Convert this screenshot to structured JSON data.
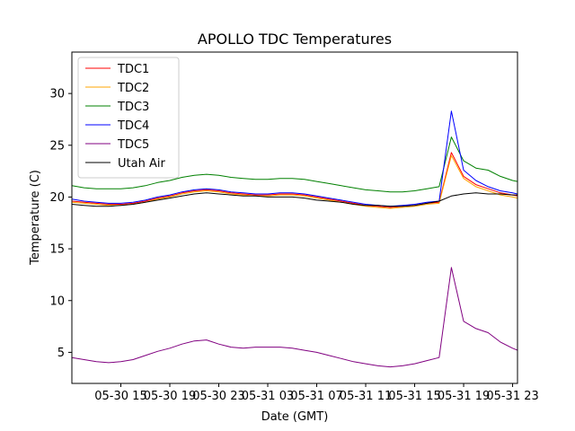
{
  "chart_data": {
    "type": "line",
    "title": "APOLLO TDC Temperatures",
    "xlabel": "Date (GMT)",
    "ylabel": "Temperature (C)",
    "xlim": [
      11.0,
      47.4
    ],
    "ylim": [
      2.0,
      34.0
    ],
    "x_tick_values": [
      15,
      19,
      23,
      27,
      31,
      35,
      39,
      43,
      47
    ],
    "x_tick_labels": [
      "05-30 15",
      "05-30 19",
      "05-30 23",
      "05-31 03",
      "05-31 07",
      "05-31 11",
      "05-31 15",
      "05-31 19",
      "05-31 23"
    ],
    "y_tick_values": [
      5,
      10,
      15,
      20,
      25,
      30
    ],
    "y_tick_labels": [
      "5",
      "10",
      "15",
      "20",
      "25",
      "30"
    ],
    "x_units": "hours since 05-30 00:00 GMT",
    "legend_position": "upper-left",
    "series": [
      {
        "name": "TDC1",
        "color": "#ff0000",
        "x": [
          11,
          12,
          13,
          14,
          15,
          16,
          17,
          18,
          19,
          20,
          21,
          22,
          23,
          24,
          25,
          26,
          27,
          28,
          29,
          30,
          31,
          32,
          33,
          34,
          35,
          36,
          37,
          38,
          39,
          40,
          41,
          42,
          43,
          44,
          45,
          46,
          47,
          47.4
        ],
        "y": [
          19.6,
          19.5,
          19.4,
          19.3,
          19.3,
          19.4,
          19.6,
          19.9,
          20.1,
          20.4,
          20.6,
          20.7,
          20.6,
          20.4,
          20.3,
          20.2,
          20.2,
          20.3,
          20.3,
          20.2,
          20.0,
          19.8,
          19.6,
          19.4,
          19.2,
          19.1,
          19.0,
          19.1,
          19.2,
          19.4,
          19.5,
          24.3,
          22.0,
          21.2,
          20.8,
          20.4,
          20.2,
          20.1
        ]
      },
      {
        "name": "TDC2",
        "color": "#ffa500",
        "x": [
          11,
          12,
          13,
          14,
          15,
          16,
          17,
          18,
          19,
          20,
          21,
          22,
          23,
          24,
          25,
          26,
          27,
          28,
          29,
          30,
          31,
          32,
          33,
          34,
          35,
          36,
          37,
          38,
          39,
          40,
          41,
          42,
          43,
          44,
          45,
          46,
          47,
          47.4
        ],
        "y": [
          19.5,
          19.4,
          19.3,
          19.2,
          19.2,
          19.3,
          19.5,
          19.8,
          20.0,
          20.3,
          20.5,
          20.6,
          20.5,
          20.3,
          20.2,
          20.1,
          20.1,
          20.2,
          20.2,
          20.1,
          19.9,
          19.7,
          19.5,
          19.3,
          19.1,
          19.0,
          18.9,
          19.0,
          19.1,
          19.3,
          19.4,
          24.0,
          21.8,
          21.0,
          20.6,
          20.2,
          20.0,
          19.9
        ]
      },
      {
        "name": "TDC3",
        "color": "#008000",
        "x": [
          11,
          12,
          13,
          14,
          15,
          16,
          17,
          18,
          19,
          20,
          21,
          22,
          23,
          24,
          25,
          26,
          27,
          28,
          29,
          30,
          31,
          32,
          33,
          34,
          35,
          36,
          37,
          38,
          39,
          40,
          41,
          42,
          43,
          44,
          45,
          46,
          47,
          47.4
        ],
        "y": [
          21.1,
          20.9,
          20.8,
          20.8,
          20.8,
          20.9,
          21.1,
          21.4,
          21.6,
          21.9,
          22.1,
          22.2,
          22.1,
          21.9,
          21.8,
          21.7,
          21.7,
          21.8,
          21.8,
          21.7,
          21.5,
          21.3,
          21.1,
          20.9,
          20.7,
          20.6,
          20.5,
          20.5,
          20.6,
          20.8,
          21.0,
          25.8,
          23.5,
          22.8,
          22.6,
          22.0,
          21.6,
          21.5
        ]
      },
      {
        "name": "TDC4",
        "color": "#0000ff",
        "x": [
          11,
          12,
          13,
          14,
          15,
          16,
          17,
          18,
          19,
          20,
          21,
          22,
          23,
          24,
          25,
          26,
          27,
          28,
          29,
          30,
          31,
          32,
          33,
          34,
          35,
          36,
          37,
          38,
          39,
          40,
          41,
          42,
          43,
          44,
          45,
          46,
          47,
          47.4
        ],
        "y": [
          19.8,
          19.6,
          19.5,
          19.4,
          19.4,
          19.5,
          19.7,
          20.0,
          20.2,
          20.5,
          20.7,
          20.8,
          20.7,
          20.5,
          20.4,
          20.3,
          20.3,
          20.4,
          20.4,
          20.3,
          20.1,
          19.9,
          19.7,
          19.5,
          19.3,
          19.2,
          19.1,
          19.2,
          19.3,
          19.5,
          19.6,
          28.3,
          22.6,
          21.6,
          21.0,
          20.6,
          20.4,
          20.3
        ]
      },
      {
        "name": "TDC5",
        "color": "#800080",
        "x": [
          11,
          12,
          13,
          14,
          15,
          16,
          17,
          18,
          19,
          20,
          21,
          22,
          23,
          24,
          25,
          26,
          27,
          28,
          29,
          30,
          31,
          32,
          33,
          34,
          35,
          36,
          37,
          38,
          39,
          40,
          41,
          42,
          43,
          44,
          45,
          46,
          47,
          47.4
        ],
        "y": [
          4.5,
          4.3,
          4.1,
          4.0,
          4.1,
          4.3,
          4.7,
          5.1,
          5.4,
          5.8,
          6.1,
          6.2,
          5.8,
          5.5,
          5.4,
          5.5,
          5.5,
          5.5,
          5.4,
          5.2,
          5.0,
          4.7,
          4.4,
          4.1,
          3.9,
          3.7,
          3.6,
          3.7,
          3.9,
          4.2,
          4.5,
          13.2,
          8.0,
          7.3,
          6.9,
          6.0,
          5.4,
          5.2
        ]
      },
      {
        "name": "Utah Air",
        "color": "#000000",
        "x": [
          11,
          12,
          13,
          14,
          15,
          16,
          17,
          18,
          19,
          20,
          21,
          22,
          23,
          24,
          25,
          26,
          27,
          28,
          29,
          30,
          31,
          32,
          33,
          34,
          35,
          36,
          37,
          38,
          39,
          40,
          41,
          42,
          43,
          44,
          45,
          46,
          47,
          47.4
        ],
        "y": [
          19.3,
          19.2,
          19.1,
          19.1,
          19.2,
          19.3,
          19.5,
          19.7,
          19.9,
          20.1,
          20.3,
          20.4,
          20.3,
          20.2,
          20.1,
          20.1,
          20.0,
          20.0,
          20.0,
          19.9,
          19.7,
          19.6,
          19.5,
          19.3,
          19.2,
          19.2,
          19.1,
          19.1,
          19.2,
          19.4,
          19.6,
          20.1,
          20.3,
          20.4,
          20.3,
          20.3,
          20.2,
          20.2
        ]
      }
    ]
  }
}
